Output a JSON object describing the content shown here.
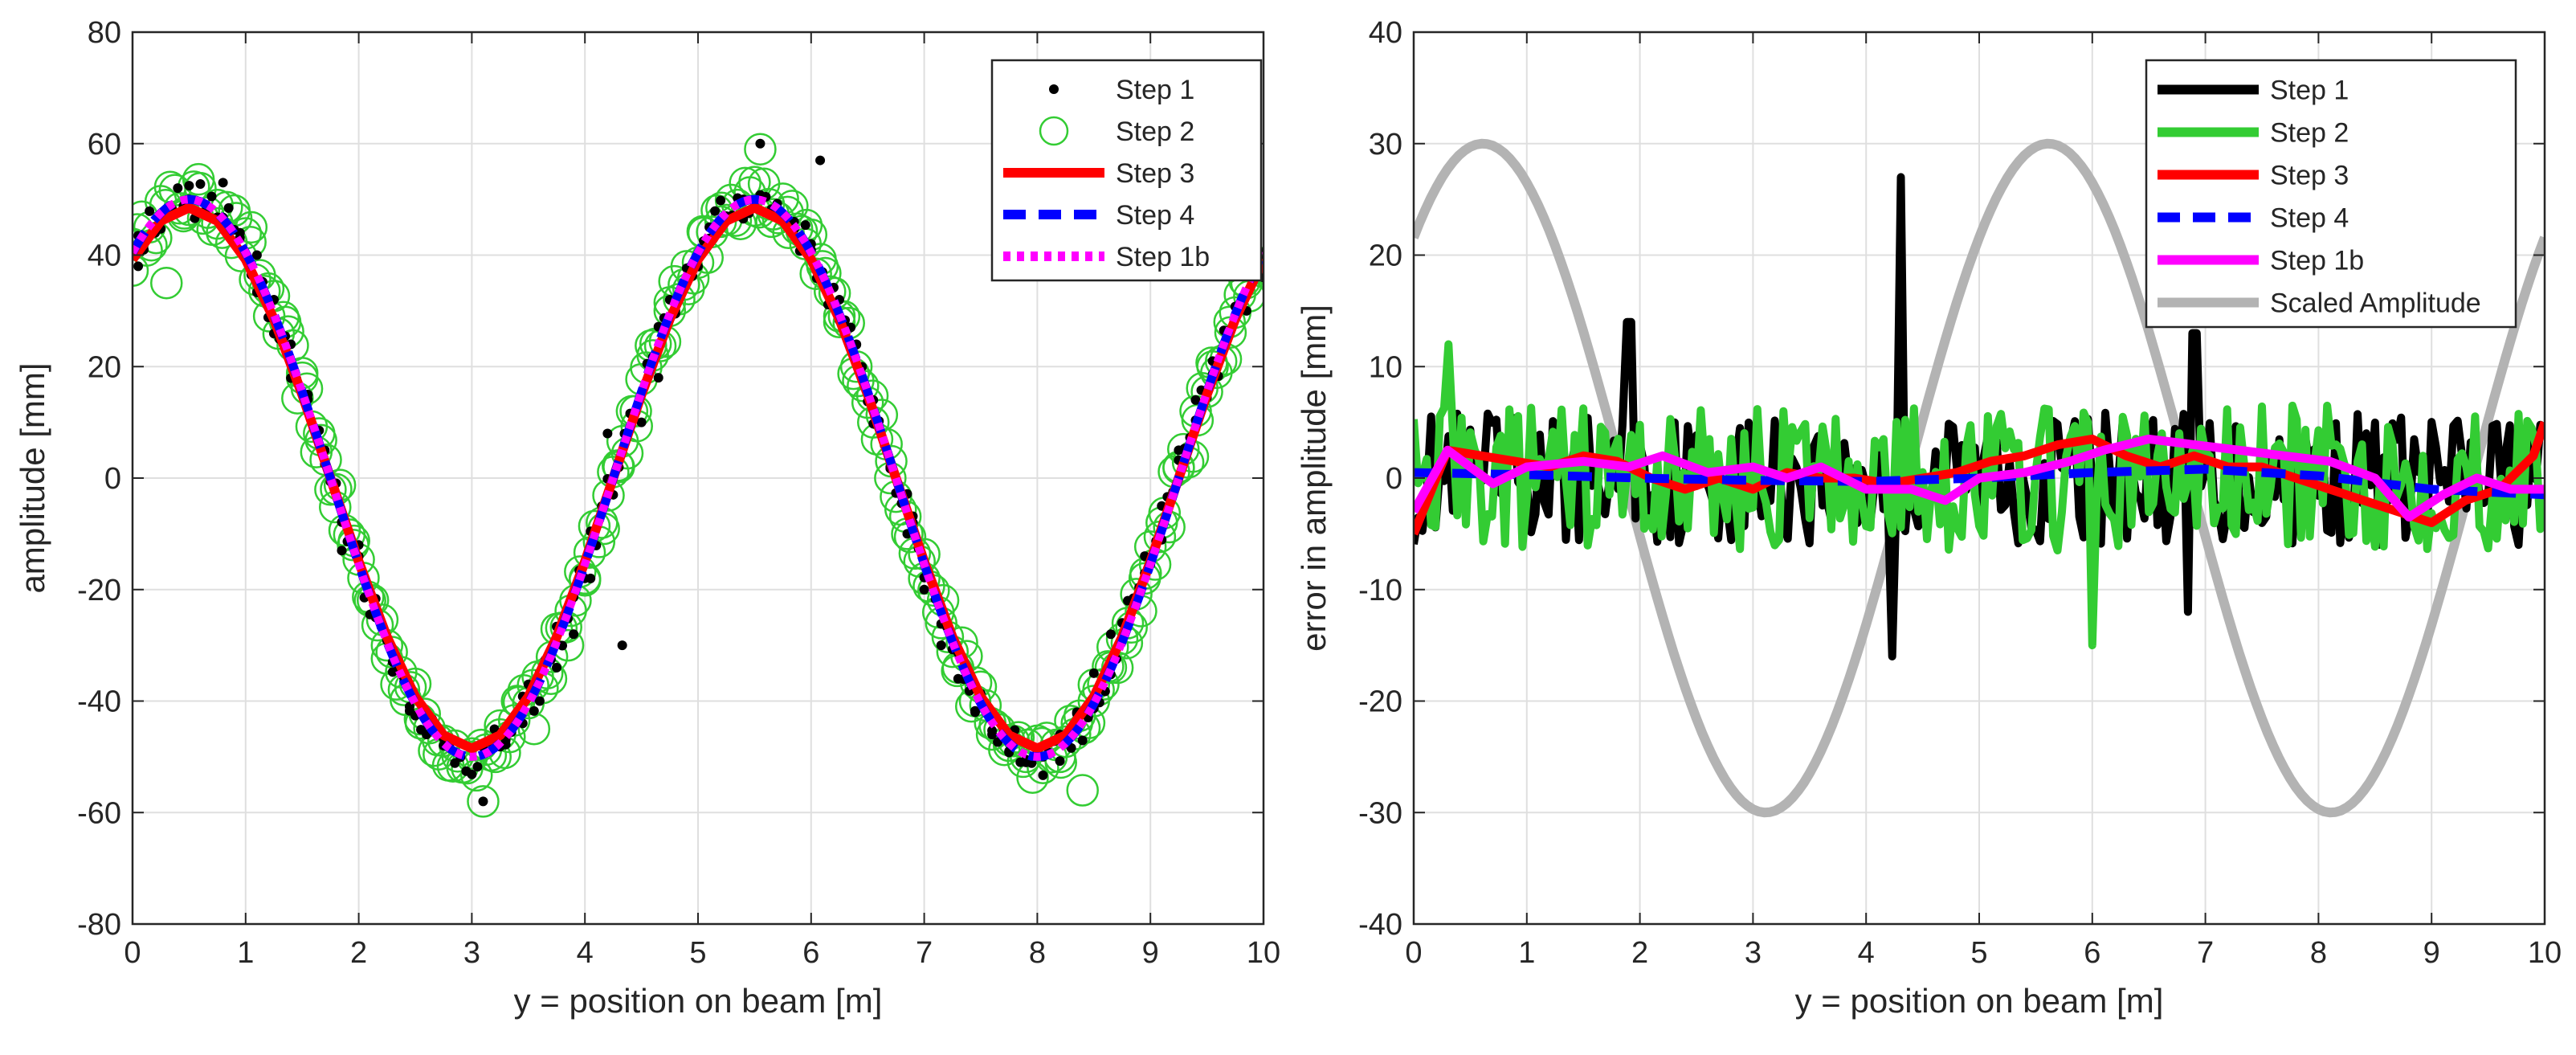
{
  "chart_data": [
    {
      "type": "scatter+line",
      "title": "",
      "xlabel": "y = position on beam [m]",
      "ylabel": "amplitude [mm]",
      "xlim": [
        0,
        10
      ],
      "ylim": [
        -80,
        80
      ],
      "xticks": [
        0,
        1,
        2,
        3,
        4,
        5,
        6,
        7,
        8,
        9,
        10
      ],
      "yticks": [
        -80,
        -60,
        -40,
        -20,
        0,
        20,
        40,
        60,
        80
      ],
      "grid": true,
      "legend_position": "top-right",
      "model": {
        "amplitude": 50,
        "wavelength": 5,
        "phase_deg": 54
      },
      "series": [
        {
          "name": "Step 1",
          "style": "black-dots",
          "color": "#000000",
          "description": "noisy measurements around sine, a few outliers",
          "x": [
            0.05,
            0.2,
            0.35,
            0.5,
            0.65,
            0.8,
            0.95,
            1.1,
            1.25,
            1.4,
            1.55,
            1.7,
            1.85,
            2.0,
            2.15,
            2.3,
            2.45,
            2.6,
            2.75,
            2.9,
            3.1,
            3.3,
            3.45,
            3.6,
            3.75,
            3.9,
            4.05,
            4.2,
            4.33,
            4.5,
            4.65,
            4.8,
            4.95,
            5.1,
            5.25,
            5.4,
            5.55,
            5.7,
            5.85,
            6.0,
            6.08,
            6.25,
            6.4,
            6.55,
            6.7,
            6.85,
            6.9,
            7.0,
            7.15,
            7.3,
            7.45,
            7.6,
            7.75,
            7.9,
            8.05,
            8.2,
            8.35,
            8.5,
            8.65,
            8.8,
            8.95,
            9.1,
            9.25,
            9.4,
            9.55,
            9.7,
            9.85,
            10.0
          ],
          "y": [
            38,
            44,
            48,
            50,
            48,
            53,
            44,
            40,
            32,
            24,
            15,
            5,
            -13,
            -12,
            -25,
            -33,
            -41,
            -46,
            -48,
            -50,
            -58,
            -47,
            -44,
            -40,
            -34,
            -28,
            -18,
            8,
            -30,
            10,
            18,
            30,
            38,
            43,
            47,
            50,
            60,
            47,
            46,
            42,
            57,
            32,
            24,
            14,
            2,
            -10,
            -8,
            -20,
            -30,
            -36,
            -42,
            -46,
            -49,
            -51,
            -50,
            -46,
            -42,
            -35,
            -28,
            -22,
            -14,
            -5,
            5,
            14,
            21,
            26,
            30,
            36
          ]
        },
        {
          "name": "Step 2",
          "style": "green-circles",
          "color": "#33cc33",
          "x": [
            0.0,
            0.15,
            0.3,
            0.45,
            0.6,
            0.75,
            0.9,
            1.05,
            1.2,
            1.35,
            1.5,
            1.65,
            1.8,
            1.95,
            2.1,
            2.25,
            2.4,
            2.55,
            2.7,
            2.85,
            3.0,
            3.1,
            3.25,
            3.4,
            3.55,
            3.7,
            3.85,
            4.0,
            4.15,
            4.3,
            4.45,
            4.6,
            4.75,
            4.9,
            5.05,
            5.2,
            5.35,
            5.5,
            5.55,
            5.65,
            5.8,
            5.95,
            6.1,
            6.25,
            6.4,
            6.55,
            6.7,
            6.85,
            7.0,
            7.15,
            7.3,
            7.45,
            7.6,
            7.75,
            7.9,
            8.05,
            8.2,
            8.35,
            8.4,
            8.5,
            8.65,
            8.8,
            8.95,
            9.1,
            9.25,
            9.4,
            9.55,
            9.7,
            9.85,
            10.0
          ],
          "y": [
            42,
            45,
            35,
            47,
            52,
            49,
            48,
            45,
            34,
            28,
            18,
            8,
            -2,
            -12,
            -22,
            -30,
            -38,
            -44,
            -47,
            -48,
            -50,
            -58,
            -46,
            -40,
            -45,
            -36,
            -30,
            -18,
            -8,
            2,
            12,
            22,
            30,
            38,
            44,
            46,
            49,
            48,
            59,
            46,
            44,
            42,
            38,
            28,
            20,
            10,
            0,
            -10,
            -18,
            -26,
            -34,
            -40,
            -46,
            -48,
            -50,
            -52,
            -50,
            -44,
            -56,
            -40,
            -34,
            -26,
            -18,
            -8,
            2,
            12,
            20,
            28,
            35,
            37
          ]
        },
        {
          "name": "Step 3",
          "style": "red-line",
          "color": "#ff0000",
          "description": "piecewise fit following sine"
        },
        {
          "name": "Step 4",
          "style": "blue-dashed",
          "color": "#0000ff",
          "description": "smooth dashed fit following sine"
        },
        {
          "name": "Step 1b",
          "style": "magenta-dotted",
          "color": "#ff00ff",
          "description": "dotted fit following sine"
        }
      ]
    },
    {
      "type": "line",
      "title": "",
      "xlabel": "y = position on beam [m]",
      "ylabel": "error in amplitude [mm]",
      "xlim": [
        0,
        10
      ],
      "ylim": [
        -40,
        40
      ],
      "xticks": [
        0,
        1,
        2,
        3,
        4,
        5,
        6,
        7,
        8,
        9,
        10
      ],
      "yticks": [
        -40,
        -30,
        -20,
        -10,
        0,
        10,
        20,
        30,
        40
      ],
      "grid": true,
      "legend_position": "top-right",
      "series": [
        {
          "name": "Step 1",
          "color": "#000000",
          "description": "high-frequency error, spikes near x=1.9 (14), x=4.3 (27, -16), x=6.9 (13, -12)"
        },
        {
          "name": "Step 2",
          "color": "#33cc33",
          "description": "high-frequency error, peaks near x=0.3 (12), x=6.0 (-15)"
        },
        {
          "name": "Step 3",
          "color": "#ff0000",
          "x": [
            0,
            0.3,
            0.6,
            0.9,
            1.2,
            1.5,
            1.8,
            2.1,
            2.4,
            2.7,
            3.0,
            3.3,
            3.6,
            3.9,
            4.2,
            4.5,
            4.8,
            5.1,
            5.4,
            5.7,
            6.0,
            6.3,
            6.6,
            6.9,
            7.2,
            7.5,
            7.8,
            8.1,
            8.4,
            8.7,
            9.0,
            9.3,
            9.6,
            9.9,
            10.0
          ],
          "y": [
            -5,
            2.5,
            2,
            1.5,
            1,
            2,
            1.5,
            0,
            -1,
            0,
            -1,
            0.5,
            0,
            0,
            -0.5,
            0,
            0.5,
            1.5,
            2,
            3,
            3.5,
            2,
            1,
            2,
            1,
            1,
            0,
            -1,
            -2,
            -3,
            -4,
            -2,
            -1,
            2,
            5
          ]
        },
        {
          "name": "Step 4",
          "color": "#0000ff",
          "style": "dashed",
          "x": [
            0,
            1,
            2,
            3,
            4,
            5,
            6,
            7,
            8,
            9,
            10
          ],
          "y": [
            0.5,
            0.3,
            0,
            -0.2,
            -0.3,
            0,
            0.5,
            0.8,
            0.2,
            -1,
            -1.5
          ]
        },
        {
          "name": "Step 1b",
          "color": "#ff00ff",
          "x": [
            0,
            0.3,
            0.7,
            1.0,
            1.5,
            1.9,
            2.2,
            2.6,
            3.0,
            3.3,
            3.6,
            4.0,
            4.4,
            4.7,
            5.0,
            5.4,
            5.8,
            6.1,
            6.5,
            6.9,
            7.3,
            7.7,
            8.1,
            8.5,
            8.8,
            9.1,
            9.4,
            9.7,
            10.0
          ],
          "y": [
            -3,
            2.5,
            -0.5,
            1,
            1.5,
            1,
            2,
            0.5,
            1,
            0,
            1,
            -1,
            -1,
            -2,
            0,
            0.5,
            1.5,
            2.5,
            3.5,
            3,
            2.5,
            2,
            1.5,
            0,
            -3.5,
            -1.5,
            0,
            -1,
            -1
          ]
        },
        {
          "name": "Scaled Amplitude",
          "color": "#b3b3b3",
          "model": {
            "amplitude": 30,
            "wavelength": 5,
            "phase_deg": 46
          }
        }
      ]
    }
  ]
}
